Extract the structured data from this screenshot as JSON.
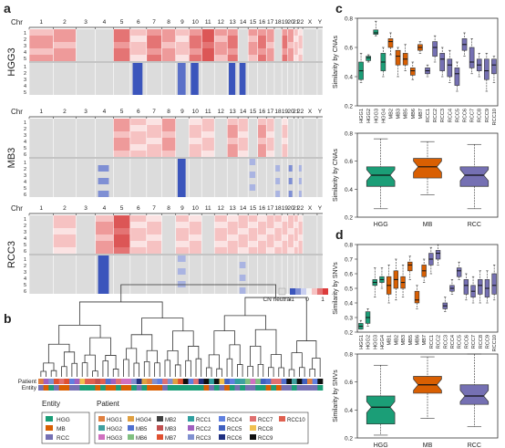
{
  "panel_labels": {
    "a": "a",
    "b": "b",
    "c": "c",
    "d": "d"
  },
  "heatmap": {
    "chr_axis_label": "Chr",
    "chromosomes": [
      "1",
      "2",
      "3",
      "4",
      "5",
      "6",
      "7",
      "8",
      "9",
      "10",
      "11",
      "12",
      "13",
      "14",
      "15",
      "16",
      "17",
      "18",
      "19",
      "20",
      "21",
      "22",
      "X",
      "Y"
    ],
    "blocks": [
      {
        "name": "HGG3",
        "gain_rows": [
          "1",
          "2",
          "3",
          "4",
          "5"
        ],
        "loss_rows": [
          "1",
          "2",
          "3",
          "4",
          "5"
        ]
      },
      {
        "name": "MB3",
        "gain_rows": [
          "1",
          "2",
          "3",
          "4",
          "5",
          "6"
        ],
        "loss_rows": [
          "1",
          "2",
          "3",
          "4",
          "5",
          "6"
        ]
      },
      {
        "name": "RCC3",
        "gain_rows": [
          "1",
          "2",
          "3",
          "4",
          "5",
          "6"
        ],
        "loss_rows": [
          "1",
          "2",
          "3",
          "4",
          "5",
          "6"
        ]
      }
    ],
    "legend": {
      "neutral": "CN neutral",
      "ticks": [
        "-1",
        "0",
        "1"
      ]
    }
  },
  "dendrogram": {
    "track_labels": [
      "Patient",
      "Entity"
    ],
    "entity_title": "Entity",
    "patient_title": "Patient",
    "entities": [
      {
        "name": "HGG",
        "color": "#1b9e77"
      },
      {
        "name": "MB",
        "color": "#d95f02"
      },
      {
        "name": "RCC",
        "color": "#7570b3"
      }
    ],
    "patients": [
      {
        "name": "HGG1",
        "color": "#e08040"
      },
      {
        "name": "HGG2",
        "color": "#40a0a0"
      },
      {
        "name": "HGG3",
        "color": "#d070c0"
      },
      {
        "name": "HGG4",
        "color": "#e0a040"
      },
      {
        "name": "MB5",
        "color": "#5070d0"
      },
      {
        "name": "MB6",
        "color": "#80c080"
      },
      {
        "name": "MB2",
        "color": "#404040"
      },
      {
        "name": "MB3",
        "color": "#c05050"
      },
      {
        "name": "MB7",
        "color": "#e05030"
      },
      {
        "name": "RCC1",
        "color": "#30a0a0"
      },
      {
        "name": "RCC2",
        "color": "#a060c0"
      },
      {
        "name": "RCC3",
        "color": "#8090d0"
      },
      {
        "name": "RCC4",
        "color": "#6080e0"
      },
      {
        "name": "RCC5",
        "color": "#4060c0"
      },
      {
        "name": "RCC6",
        "color": "#203080"
      },
      {
        "name": "RCC7",
        "color": "#e07070"
      },
      {
        "name": "RCC8",
        "color": "#f0c050"
      },
      {
        "name": "RCC9",
        "color": "#101010"
      },
      {
        "name": "RCC10",
        "color": "#e06050"
      }
    ]
  },
  "chart_data": [
    {
      "type": "box",
      "id": "c-top",
      "ylabel": "Similarity by CNAs",
      "ylim": [
        0.2,
        0.8
      ],
      "yticks": [
        "0.2",
        "0.4",
        "0.6",
        "0.8"
      ],
      "categories": [
        "HGG1",
        "HGG2",
        "HGG3",
        "HGG4",
        "MB2",
        "MB3",
        "MB5",
        "MB6",
        "MB7",
        "RCC1",
        "RCC2",
        "RCC3",
        "RCC4",
        "RCC5",
        "RCC6",
        "RCC7",
        "RCC8",
        "RCC9",
        "RCC10"
      ],
      "entity": [
        "HGG",
        "HGG",
        "HGG",
        "HGG",
        "MB",
        "MB",
        "MB",
        "MB",
        "MB",
        "RCC",
        "RCC",
        "RCC",
        "RCC",
        "RCC",
        "RCC",
        "RCC",
        "RCC",
        "RCC",
        "RCC"
      ],
      "boxes": [
        {
          "min": 0.36,
          "q1": 0.38,
          "median": 0.44,
          "q3": 0.5,
          "max": 0.56
        },
        {
          "min": 0.5,
          "q1": 0.51,
          "median": 0.53,
          "q3": 0.54,
          "max": 0.55
        },
        {
          "min": 0.68,
          "q1": 0.69,
          "median": 0.7,
          "q3": 0.72,
          "max": 0.78
        },
        {
          "min": 0.4,
          "q1": 0.44,
          "median": 0.5,
          "q3": 0.56,
          "max": 0.6
        },
        {
          "min": 0.55,
          "q1": 0.6,
          "median": 0.64,
          "q3": 0.66,
          "max": 0.7
        },
        {
          "min": 0.4,
          "q1": 0.48,
          "median": 0.54,
          "q3": 0.58,
          "max": 0.6
        },
        {
          "min": 0.44,
          "q1": 0.48,
          "median": 0.52,
          "q3": 0.56,
          "max": 0.62
        },
        {
          "min": 0.38,
          "q1": 0.41,
          "median": 0.44,
          "q3": 0.46,
          "max": 0.5
        },
        {
          "min": 0.56,
          "q1": 0.58,
          "median": 0.6,
          "q3": 0.62,
          "max": 0.64
        },
        {
          "min": 0.4,
          "q1": 0.42,
          "median": 0.44,
          "q3": 0.46,
          "max": 0.48
        },
        {
          "min": 0.5,
          "q1": 0.54,
          "median": 0.6,
          "q3": 0.64,
          "max": 0.68
        },
        {
          "min": 0.4,
          "q1": 0.44,
          "median": 0.52,
          "q3": 0.56,
          "max": 0.6
        },
        {
          "min": 0.36,
          "q1": 0.4,
          "median": 0.48,
          "q3": 0.52,
          "max": 0.58
        },
        {
          "min": 0.3,
          "q1": 0.34,
          "median": 0.42,
          "q3": 0.46,
          "max": 0.5
        },
        {
          "min": 0.54,
          "q1": 0.58,
          "median": 0.62,
          "q3": 0.66,
          "max": 0.7
        },
        {
          "min": 0.42,
          "q1": 0.46,
          "median": 0.5,
          "q3": 0.6,
          "max": 0.66
        },
        {
          "min": 0.4,
          "q1": 0.44,
          "median": 0.48,
          "q3": 0.52,
          "max": 0.56
        },
        {
          "min": 0.3,
          "q1": 0.38,
          "median": 0.44,
          "q3": 0.52,
          "max": 0.56
        },
        {
          "min": 0.36,
          "q1": 0.42,
          "median": 0.48,
          "q3": 0.52,
          "max": 0.54
        }
      ]
    },
    {
      "type": "box",
      "id": "c-bottom",
      "ylabel": "Similarity by CNAs",
      "ylim": [
        0.2,
        0.8
      ],
      "yticks": [
        "0.2",
        "0.4",
        "0.6",
        "0.8"
      ],
      "categories": [
        "HGG",
        "MB",
        "RCC"
      ],
      "boxes": [
        {
          "min": 0.26,
          "q1": 0.42,
          "median": 0.5,
          "q3": 0.56,
          "max": 0.76
        },
        {
          "min": 0.36,
          "q1": 0.48,
          "median": 0.56,
          "q3": 0.62,
          "max": 0.74
        },
        {
          "min": 0.26,
          "q1": 0.42,
          "median": 0.5,
          "q3": 0.56,
          "max": 0.72
        }
      ]
    },
    {
      "type": "box",
      "id": "d-top",
      "ylabel": "Similarity by SNVs",
      "ylim": [
        0.2,
        0.8
      ],
      "yticks": [
        "0.2",
        "0.3",
        "0.4",
        "0.5",
        "0.6",
        "0.7",
        "0.8"
      ],
      "categories": [
        "HGG1",
        "HGG2",
        "HGG3",
        "HGG4",
        "MB1",
        "MB2",
        "MB3",
        "MB5",
        "MB6",
        "MB7",
        "RCC1",
        "RCC2",
        "RCC3",
        "RCC4",
        "RCC5",
        "RCC6",
        "RCC7",
        "RCC8",
        "RCC9",
        "RCC10"
      ],
      "entity": [
        "HGG",
        "HGG",
        "HGG",
        "HGG",
        "MB",
        "MB",
        "MB",
        "MB",
        "MB",
        "MB",
        "RCC",
        "RCC",
        "RCC",
        "RCC",
        "RCC",
        "RCC",
        "RCC",
        "RCC",
        "RCC",
        "RCC"
      ],
      "boxes": [
        {
          "min": 0.22,
          "q1": 0.22,
          "median": 0.24,
          "q3": 0.26,
          "max": 0.28
        },
        {
          "min": 0.24,
          "q1": 0.26,
          "median": 0.3,
          "q3": 0.34,
          "max": 0.36
        },
        {
          "min": 0.44,
          "q1": 0.52,
          "median": 0.54,
          "q3": 0.56,
          "max": 0.64
        },
        {
          "min": 0.5,
          "q1": 0.54,
          "median": 0.56,
          "q3": 0.58,
          "max": 0.64
        },
        {
          "min": 0.4,
          "q1": 0.46,
          "median": 0.52,
          "q3": 0.58,
          "max": 0.66
        },
        {
          "min": 0.42,
          "q1": 0.5,
          "median": 0.56,
          "q3": 0.62,
          "max": 0.7
        },
        {
          "min": 0.44,
          "q1": 0.5,
          "median": 0.54,
          "q3": 0.58,
          "max": 0.66
        },
        {
          "min": 0.56,
          "q1": 0.62,
          "median": 0.66,
          "q3": 0.68,
          "max": 0.72
        },
        {
          "min": 0.36,
          "q1": 0.4,
          "median": 0.42,
          "q3": 0.48,
          "max": 0.52
        },
        {
          "min": 0.54,
          "q1": 0.58,
          "median": 0.62,
          "q3": 0.66,
          "max": 0.7
        },
        {
          "min": 0.6,
          "q1": 0.66,
          "median": 0.7,
          "q3": 0.74,
          "max": 0.78
        },
        {
          "min": 0.66,
          "q1": 0.7,
          "median": 0.74,
          "q3": 0.76,
          "max": 0.8
        },
        {
          "min": 0.34,
          "q1": 0.36,
          "median": 0.38,
          "q3": 0.4,
          "max": 0.44
        },
        {
          "min": 0.46,
          "q1": 0.48,
          "median": 0.5,
          "q3": 0.52,
          "max": 0.56
        },
        {
          "min": 0.56,
          "q1": 0.58,
          "median": 0.62,
          "q3": 0.64,
          "max": 0.68
        },
        {
          "min": 0.42,
          "q1": 0.46,
          "median": 0.52,
          "q3": 0.56,
          "max": 0.6
        },
        {
          "min": 0.4,
          "q1": 0.44,
          "median": 0.48,
          "q3": 0.52,
          "max": 0.58
        },
        {
          "min": 0.4,
          "q1": 0.46,
          "median": 0.52,
          "q3": 0.56,
          "max": 0.62
        },
        {
          "min": 0.4,
          "q1": 0.44,
          "median": 0.5,
          "q3": 0.56,
          "max": 0.62
        },
        {
          "min": 0.42,
          "q1": 0.46,
          "median": 0.52,
          "q3": 0.6,
          "max": 0.66
        }
      ]
    },
    {
      "type": "box",
      "id": "d-bottom",
      "ylabel": "Similarity by SNVs",
      "ylim": [
        0.2,
        0.8
      ],
      "yticks": [
        "0.2",
        "0.4",
        "0.6",
        "0.8"
      ],
      "categories": [
        "HGG",
        "MB",
        "RCC"
      ],
      "boxes": [
        {
          "min": 0.22,
          "q1": 0.3,
          "median": 0.42,
          "q3": 0.5,
          "max": 0.72
        },
        {
          "min": 0.34,
          "q1": 0.52,
          "median": 0.58,
          "q3": 0.64,
          "max": 0.78
        },
        {
          "min": 0.28,
          "q1": 0.44,
          "median": 0.5,
          "q3": 0.58,
          "max": 0.8
        }
      ]
    }
  ]
}
